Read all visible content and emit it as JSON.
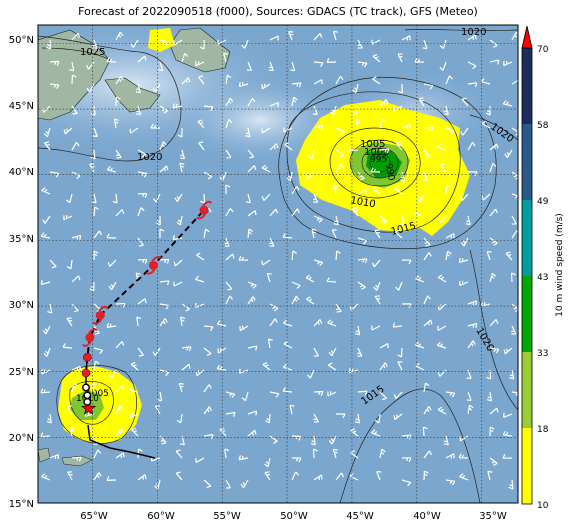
{
  "title": "Forecast of 2022090518 (f000), Sources: GDACS (TC track), GFS (Meteo)",
  "map": {
    "lat_labels": [
      "15°N",
      "20°N",
      "25°N",
      "30°N",
      "35°N",
      "40°N",
      "45°N",
      "50°N"
    ],
    "lon_labels": [
      "65°W",
      "60°W",
      "55°W",
      "50°W",
      "45°W",
      "40°W",
      "35°W"
    ],
    "lat_range": [
      15,
      51.4
    ],
    "lon_range": [
      -69.2,
      -32.2
    ],
    "isobar_labels": [
      "1025",
      "1020",
      "1020",
      "1020",
      "1005",
      "1000",
      "1010",
      "1015",
      "1020",
      "1015",
      "1010",
      "1005",
      "995",
      "990"
    ],
    "track": [
      {
        "lon": -65.3,
        "lat": 22.2,
        "marker": "star"
      },
      {
        "lon": -65.4,
        "lat": 22.7,
        "marker": "circle-white"
      },
      {
        "lon": -65.4,
        "lat": 23.2,
        "marker": "circle-white"
      },
      {
        "lon": -65.5,
        "lat": 23.8,
        "marker": "circle-white"
      },
      {
        "lon": -65.5,
        "lat": 24.9,
        "marker": "circle-red"
      },
      {
        "lon": -65.4,
        "lat": 26.1,
        "marker": "circle-red"
      },
      {
        "lon": -65.2,
        "lat": 27.6,
        "marker": "hurricane"
      },
      {
        "lon": -64.4,
        "lat": 29.3,
        "marker": "hurricane"
      },
      {
        "lon": -60.3,
        "lat": 33.1,
        "marker": "hurricane"
      },
      {
        "lon": -56.4,
        "lat": 37.3,
        "marker": "hurricane"
      }
    ]
  },
  "colorbar": {
    "label": "10 m wind speed (m/s)",
    "ticks": [
      "10",
      "18",
      "33",
      "43",
      "49",
      "58",
      "70"
    ],
    "colors": [
      "#ffff00",
      "#9acd32",
      "#00a800",
      "#009e9e",
      "#2a5a8a",
      "#1f2d5c"
    ]
  }
}
